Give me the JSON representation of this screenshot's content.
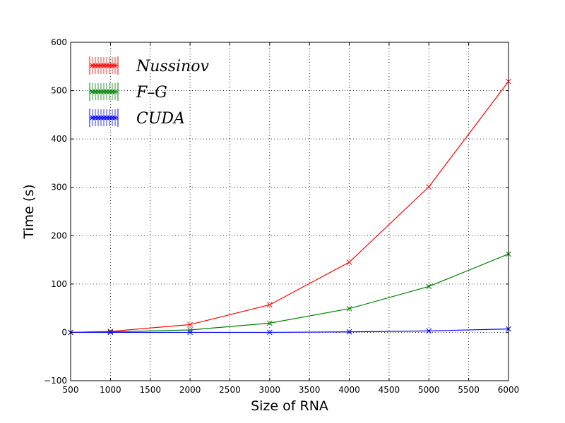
{
  "chart_data": {
    "type": "line",
    "title": "",
    "xlabel": "Size of RNA",
    "ylabel": "Time (s)",
    "xlim": [
      500,
      6000
    ],
    "ylim": [
      -100,
      600
    ],
    "xticks": [
      500,
      1000,
      1500,
      2000,
      2500,
      3000,
      3500,
      4000,
      4500,
      5000,
      5500,
      6000
    ],
    "yticks": [
      -100,
      0,
      100,
      200,
      300,
      400,
      500,
      600
    ],
    "xtick_labels": [
      "500",
      "1000",
      "1500",
      "2000",
      "2500",
      "3000",
      "3500",
      "4000",
      "4500",
      "5000",
      "5500",
      "6000"
    ],
    "ytick_labels": [
      "−100",
      "0",
      "100",
      "200",
      "300",
      "400",
      "500",
      "600"
    ],
    "grid": true,
    "legend_position": "top-left",
    "marker": "x",
    "x": [
      500,
      1000,
      2000,
      3000,
      4000,
      5000,
      6000
    ],
    "series": [
      {
        "name": "Nussinov",
        "color": "#ff0000",
        "values": [
          0,
          2,
          16,
          57,
          145,
          301,
          519
        ]
      },
      {
        "name": "F–G",
        "color": "#008000",
        "values": [
          0,
          1,
          5,
          19,
          49,
          95,
          162
        ]
      },
      {
        "name": "CUDA",
        "color": "#0000ff",
        "values": [
          0,
          0,
          0,
          0,
          1,
          3,
          7
        ]
      }
    ]
  }
}
